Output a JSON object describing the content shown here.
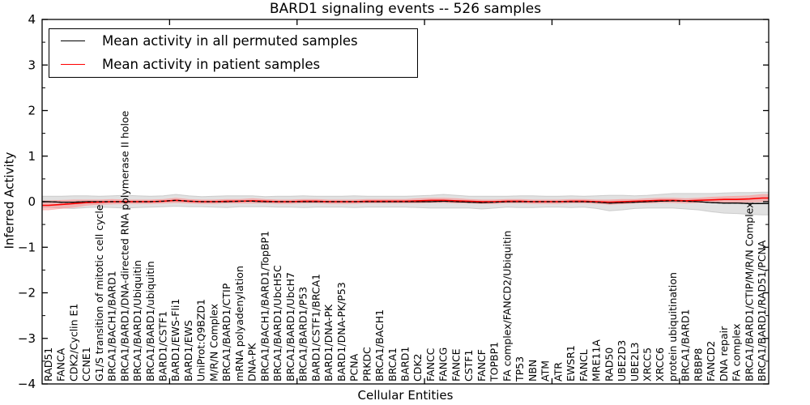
{
  "chart_data": {
    "type": "line",
    "title": "BARD1 signaling events -- 526 samples",
    "xlabel": "Cellular Entities",
    "ylabel": "Inferred Activity",
    "ylim": [
      -4,
      4
    ],
    "xlim": [
      0,
      57
    ],
    "grid": false,
    "legend_position": "upper left",
    "ytick_values": [
      4,
      3,
      2,
      1,
      0,
      -1,
      -2,
      -3,
      -4
    ],
    "ytick_labels": [
      "4",
      "3",
      "2",
      "1",
      "0",
      "−1",
      "−2",
      "−3",
      "−4"
    ],
    "yminor_values": [
      3.5,
      2.5,
      1.5,
      0.5,
      -0.5,
      -1.5,
      -2.5,
      -3.5
    ],
    "xtick_values": [
      10,
      20,
      30,
      40,
      50
    ],
    "categories": [
      "RAD51",
      "FANCA",
      "CDK2/Cyclin E1",
      "CCNE1",
      "G1/S transition of mitotic cell cycle",
      "BRCA1/BACH1/BARD1",
      "BRCA1/BARD1/DNA-directed RNA polymerase II holoe",
      "BRCA1/BARD1/Ubiquitin",
      "BRCA1/BARD1/ubiquitin",
      "BARD1/CSTF1",
      "BARD1/EWS-Fli1",
      "BARD1/EWS",
      "UniProt:Q9BZD1",
      "M/R/N Complex",
      "BRCA1/BARD1/CTIP",
      "mRNA polyadenylation",
      "DNA-PK",
      "BRCA1/BACH1/BARD1/TopBP1",
      "BRCA1/BARD1/UbcH5C",
      "BRCA1/BARD1/UbcH7",
      "BRCA1/BARD1/P53",
      "BARD1/CSTF1/BRCA1",
      "BARD1/DNA-PK",
      "BARD1/DNA-PK/P53",
      "PCNA",
      "PRKDC",
      "BRCA1/BACH1",
      "BRCA1",
      "BARD1",
      "CDK2",
      "FANCC",
      "FANCG",
      "FANCE",
      "CSTF1",
      "FANCF",
      "TOPBP1",
      "FA complex/FANCD2/Ubiquitin",
      "TP53",
      "NBN",
      "ATM",
      "ATR",
      "EWSR1",
      "FANCL",
      "MRE11A",
      "RAD50",
      "UBE2D3",
      "UBE2L3",
      "XRCC5",
      "XRCC6",
      "protein ubiquitination",
      "BRCA1/BARD1",
      "RBBP8",
      "FANCD2",
      "DNA repair",
      "FA complex",
      "BRCA1/BARD1/CTIP/M/R/N Complex",
      "BRCA1/BARD1/RAD51/PCNA"
    ],
    "series": [
      {
        "name": "Mean activity in all permuted samples",
        "color": "#000000",
        "values": [
          0.0,
          -0.01,
          -0.01,
          0.0,
          0.0,
          0.0,
          0.0,
          0.0,
          0.0,
          0.01,
          0.03,
          0.01,
          0.0,
          0.0,
          0.0,
          0.01,
          0.01,
          0.0,
          0.0,
          0.0,
          0.0,
          0.0,
          0.0,
          0.0,
          0.0,
          0.0,
          0.0,
          0.0,
          0.0,
          0.0,
          0.0,
          0.01,
          0.0,
          -0.01,
          -0.02,
          -0.01,
          0.0,
          0.0,
          0.0,
          0.0,
          0.0,
          0.0,
          0.0,
          -0.01,
          -0.03,
          -0.02,
          -0.01,
          0.0,
          0.01,
          0.02,
          0.01,
          0.0,
          -0.02,
          -0.03,
          -0.03,
          -0.04,
          -0.04
        ],
        "band_color": "#d9d9d9",
        "band_half_widths": [
          0.12,
          0.13,
          0.14,
          0.13,
          0.12,
          0.13,
          0.14,
          0.13,
          0.12,
          0.12,
          0.13,
          0.12,
          0.11,
          0.12,
          0.13,
          0.12,
          0.12,
          0.11,
          0.12,
          0.12,
          0.13,
          0.12,
          0.12,
          0.12,
          0.13,
          0.12,
          0.12,
          0.12,
          0.12,
          0.13,
          0.14,
          0.15,
          0.14,
          0.13,
          0.14,
          0.13,
          0.12,
          0.13,
          0.13,
          0.12,
          0.12,
          0.13,
          0.12,
          0.14,
          0.17,
          0.16,
          0.14,
          0.14,
          0.15,
          0.16,
          0.17,
          0.18,
          0.2,
          0.22,
          0.23,
          0.24,
          0.25
        ]
      },
      {
        "name": "Mean activity in patient samples",
        "color": "#ff0000",
        "values": [
          -0.08,
          -0.06,
          -0.04,
          -0.02,
          -0.01,
          0.0,
          0.0,
          0.0,
          0.0,
          0.01,
          0.03,
          0.01,
          0.0,
          0.0,
          0.01,
          0.01,
          0.02,
          0.01,
          0.0,
          0.0,
          0.01,
          0.01,
          0.0,
          0.0,
          0.0,
          0.01,
          0.01,
          0.01,
          0.01,
          0.02,
          0.03,
          0.03,
          0.02,
          0.01,
          0.0,
          0.0,
          0.01,
          0.01,
          0.0,
          0.0,
          0.0,
          0.01,
          0.01,
          0.0,
          -0.01,
          0.0,
          0.01,
          0.02,
          0.03,
          0.03,
          0.02,
          0.03,
          0.04,
          0.05,
          0.05,
          0.06,
          0.08
        ],
        "band_color": "#ff7f7f",
        "band_half_widths": [
          0.1,
          0.09,
          0.08,
          0.06,
          0.05,
          0.05,
          0.04,
          0.04,
          0.04,
          0.04,
          0.05,
          0.04,
          0.04,
          0.04,
          0.04,
          0.04,
          0.05,
          0.04,
          0.04,
          0.04,
          0.04,
          0.04,
          0.04,
          0.04,
          0.04,
          0.04,
          0.04,
          0.04,
          0.04,
          0.05,
          0.05,
          0.05,
          0.05,
          0.04,
          0.04,
          0.04,
          0.04,
          0.04,
          0.04,
          0.04,
          0.04,
          0.04,
          0.04,
          0.04,
          0.05,
          0.05,
          0.04,
          0.05,
          0.05,
          0.05,
          0.05,
          0.05,
          0.06,
          0.06,
          0.07,
          0.07,
          0.08
        ]
      }
    ]
  }
}
